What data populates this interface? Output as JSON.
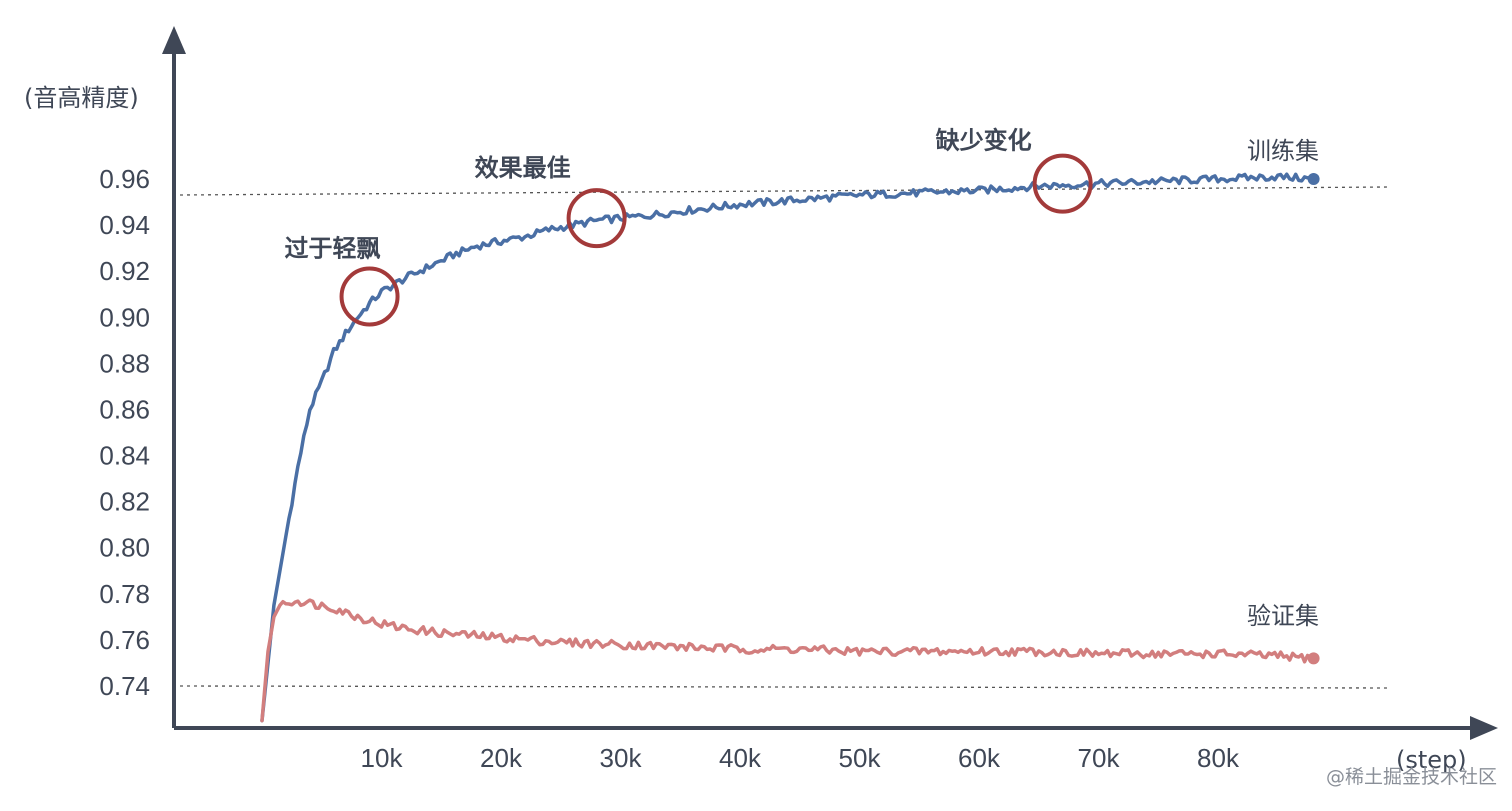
{
  "chart_data": {
    "type": "line",
    "title": "",
    "ylabel": "(音高精度)",
    "xlabel": "(step)",
    "ylim": [
      0.725,
      0.985
    ],
    "xlim": [
      0,
      90000
    ],
    "yticks": [
      0.74,
      0.76,
      0.78,
      0.8,
      0.82,
      0.84,
      0.86,
      0.88,
      0.9,
      0.92,
      0.94,
      0.96
    ],
    "ytick_labels": [
      "0.74",
      "0.76",
      "0.78",
      "0.80",
      "0.82",
      "0.84",
      "0.86",
      "0.88",
      "0.90",
      "0.92",
      "0.94",
      "0.96"
    ],
    "xticks": [
      10000,
      20000,
      30000,
      40000,
      50000,
      60000,
      70000,
      80000
    ],
    "xtick_labels": [
      "10k",
      "20k",
      "30k",
      "40k",
      "50k",
      "60k",
      "70k",
      "80k"
    ],
    "grid": false,
    "series": [
      {
        "name": "训练集",
        "color": "#4a6fa5",
        "x": [
          0,
          1000,
          2000,
          3000,
          4000,
          5000,
          6000,
          7000,
          8000,
          9000,
          10000,
          12000,
          14000,
          16000,
          18000,
          20000,
          22000,
          24000,
          26000,
          28000,
          30000,
          32000,
          35000,
          40000,
          45000,
          50000,
          55000,
          60000,
          65000,
          70000,
          75000,
          80000,
          85000,
          88000
        ],
        "y": [
          0.725,
          0.775,
          0.805,
          0.835,
          0.86,
          0.872,
          0.885,
          0.893,
          0.9,
          0.906,
          0.911,
          0.917,
          0.922,
          0.927,
          0.931,
          0.933,
          0.935,
          0.938,
          0.94,
          0.942,
          0.943,
          0.944,
          0.946,
          0.949,
          0.951,
          0.953,
          0.954,
          0.955,
          0.957,
          0.958,
          0.959,
          0.96,
          0.961,
          0.96
        ]
      },
      {
        "name": "验证集",
        "color": "#d27e7e",
        "x": [
          0,
          500,
          1000,
          1500,
          2000,
          3000,
          4000,
          5000,
          6000,
          8000,
          10000,
          12000,
          15000,
          20000,
          25000,
          30000,
          35000,
          40000,
          45000,
          50000,
          55000,
          60000,
          65000,
          70000,
          75000,
          80000,
          85000,
          88000
        ],
        "y": [
          0.725,
          0.755,
          0.77,
          0.775,
          0.776,
          0.777,
          0.776,
          0.775,
          0.774,
          0.77,
          0.767,
          0.765,
          0.763,
          0.761,
          0.759,
          0.758,
          0.757,
          0.756,
          0.756,
          0.755,
          0.755,
          0.755,
          0.755,
          0.754,
          0.754,
          0.754,
          0.753,
          0.752
        ]
      }
    ],
    "reference_lines": [
      0.96,
      0.74
    ],
    "annotations": [
      {
        "text": "过于轻飘",
        "x": 9000,
        "y": 0.909
      },
      {
        "text": "效果最佳",
        "x": 28000,
        "y": 0.943
      },
      {
        "text": "缺少变化",
        "x": 67000,
        "y": 0.958
      }
    ]
  },
  "watermark": "@稀土掘金技术社区"
}
